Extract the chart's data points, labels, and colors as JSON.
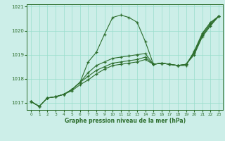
{
  "title": "Graphe pression niveau de la mer (hPa)",
  "bg_color": "#cceee8",
  "grid_color": "#99ddcc",
  "line_color": "#2d6e2d",
  "xlim": [
    -0.5,
    23.5
  ],
  "ylim": [
    1016.7,
    1021.1
  ],
  "yticks": [
    1017,
    1018,
    1019,
    1020,
    1021
  ],
  "xticks": [
    0,
    1,
    2,
    3,
    4,
    5,
    6,
    7,
    8,
    9,
    10,
    11,
    12,
    13,
    14,
    15,
    16,
    17,
    18,
    19,
    20,
    21,
    22,
    23
  ],
  "line1": [
    1017.05,
    1016.85,
    1017.2,
    1017.25,
    1017.35,
    1017.55,
    1017.85,
    1018.7,
    1019.1,
    1019.85,
    1020.55,
    1020.65,
    1020.55,
    1020.35,
    1019.55,
    1018.6,
    1018.65,
    1018.6,
    1018.55,
    1018.55,
    1019.15,
    1019.9,
    1020.35,
    1020.6
  ],
  "line2": [
    1017.05,
    1016.85,
    1017.2,
    1017.25,
    1017.35,
    1017.55,
    1017.85,
    1018.25,
    1018.55,
    1018.7,
    1018.85,
    1018.9,
    1018.95,
    1019.0,
    1019.05,
    1018.6,
    1018.65,
    1018.6,
    1018.55,
    1018.6,
    1019.1,
    1019.85,
    1020.3,
    1020.6
  ],
  "line3": [
    1017.05,
    1016.85,
    1017.2,
    1017.25,
    1017.35,
    1017.55,
    1017.85,
    1018.1,
    1018.35,
    1018.5,
    1018.65,
    1018.7,
    1018.75,
    1018.8,
    1018.9,
    1018.6,
    1018.65,
    1018.6,
    1018.55,
    1018.6,
    1019.05,
    1019.8,
    1020.25,
    1020.6
  ],
  "line4": [
    1017.05,
    1016.85,
    1017.2,
    1017.25,
    1017.35,
    1017.5,
    1017.75,
    1017.95,
    1018.2,
    1018.4,
    1018.55,
    1018.6,
    1018.65,
    1018.7,
    1018.8,
    1018.6,
    1018.65,
    1018.6,
    1018.55,
    1018.6,
    1019.0,
    1019.75,
    1020.2,
    1020.6
  ]
}
